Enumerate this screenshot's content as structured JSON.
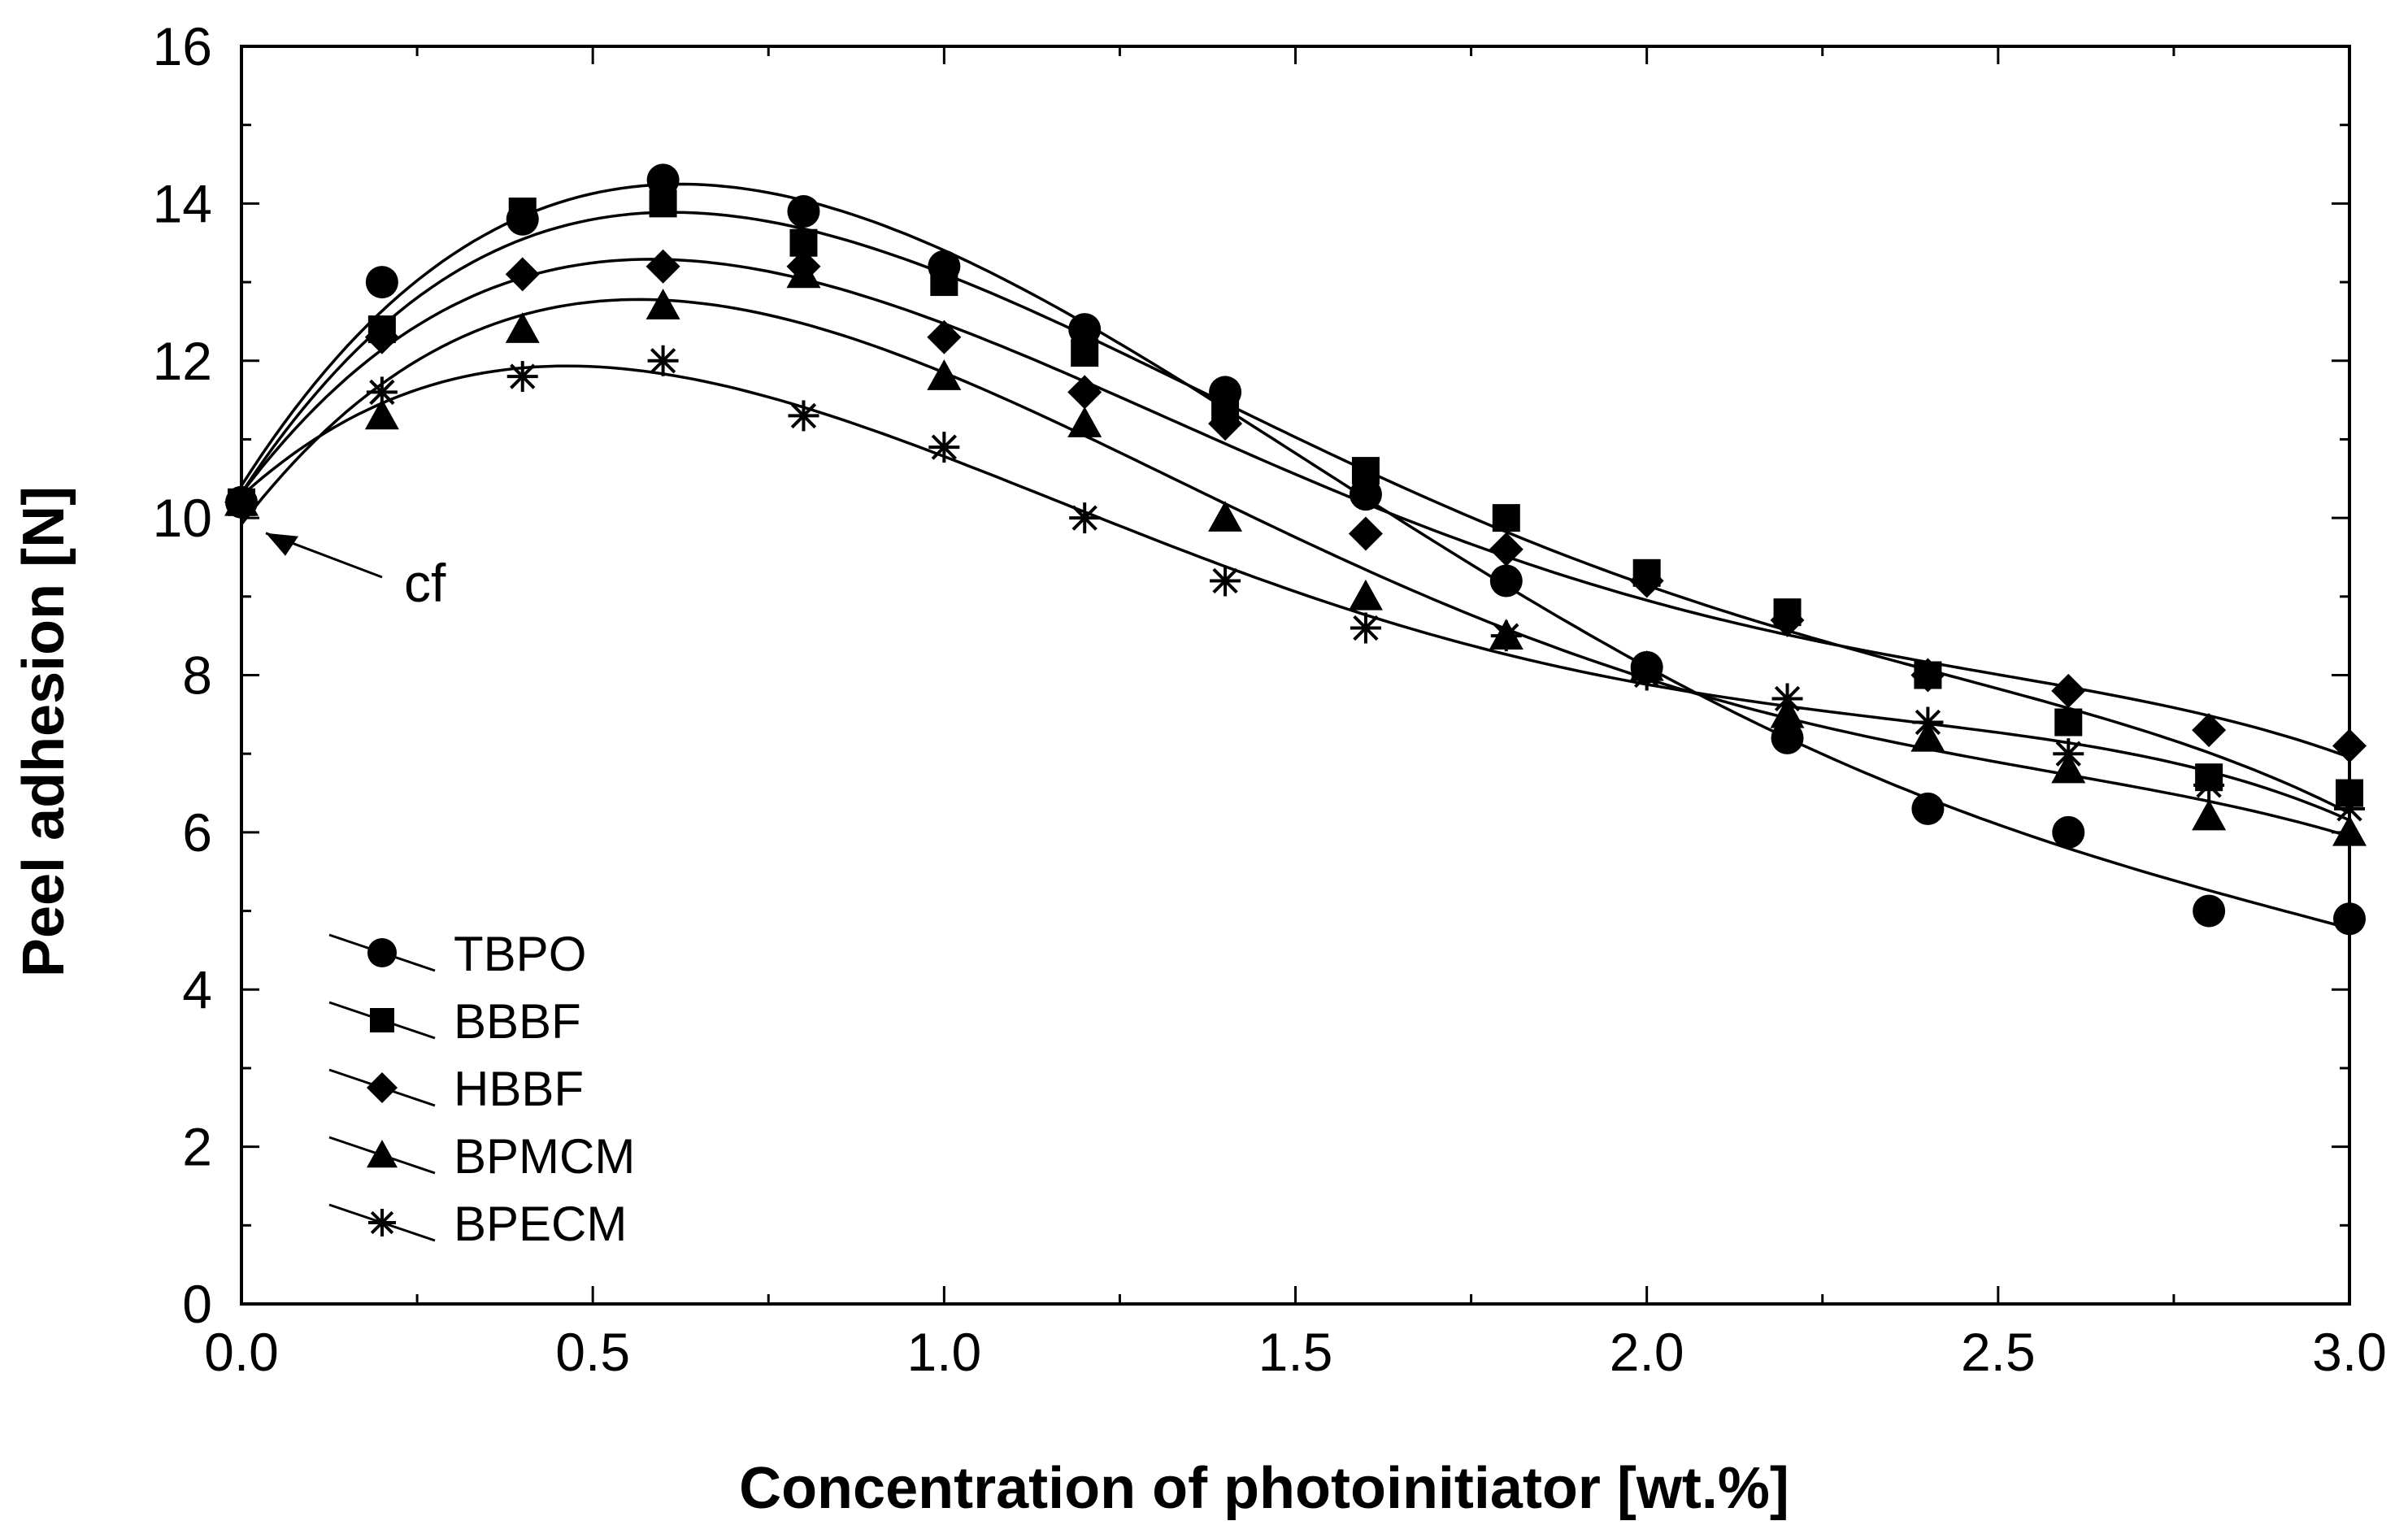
{
  "chart_data": {
    "type": "scatter",
    "title": "",
    "xlabel": "Concentration of photoinitiator [wt.%]",
    "ylabel": "Peel adhesion [N]",
    "xlim": [
      0,
      3
    ],
    "ylim": [
      0,
      16
    ],
    "xticks": [
      "0.0",
      "0.5",
      "1.0",
      "1.5",
      "2.0",
      "2.5",
      "3.0"
    ],
    "yticks": [
      "0",
      "2",
      "4",
      "6",
      "8",
      "10",
      "12",
      "14",
      "16"
    ],
    "legend_position": "bottom-left",
    "annotation": {
      "text": "cf",
      "x": 0,
      "y": 10.2
    },
    "series": [
      {
        "name": "TBPO",
        "marker": "circle",
        "x": [
          0,
          0.2,
          0.4,
          0.6,
          0.8,
          1.0,
          1.2,
          1.4,
          1.6,
          1.8,
          2.0,
          2.2,
          2.4,
          2.6,
          2.8,
          3.0
        ],
        "y": [
          10.2,
          13.0,
          13.8,
          14.3,
          13.9,
          13.2,
          12.4,
          11.6,
          10.3,
          9.2,
          8.1,
          7.2,
          6.3,
          6.0,
          5.0,
          4.9
        ]
      },
      {
        "name": "BBBF",
        "marker": "square",
        "x": [
          0,
          0.2,
          0.4,
          0.6,
          0.8,
          1.0,
          1.2,
          1.4,
          1.6,
          1.8,
          2.0,
          2.2,
          2.4,
          2.6,
          2.8,
          3.0
        ],
        "y": [
          10.2,
          12.4,
          13.9,
          14.0,
          13.5,
          13.0,
          12.1,
          11.4,
          10.6,
          10.0,
          9.3,
          8.8,
          8.0,
          7.4,
          6.7,
          6.5
        ]
      },
      {
        "name": "HBBF",
        "marker": "diamond",
        "x": [
          0,
          0.2,
          0.4,
          0.6,
          0.8,
          1.0,
          1.2,
          1.4,
          1.6,
          1.8,
          2.0,
          2.2,
          2.4,
          2.6,
          2.8,
          3.0
        ],
        "y": [
          10.2,
          12.3,
          13.1,
          13.2,
          13.2,
          12.3,
          11.6,
          11.2,
          9.8,
          9.6,
          9.2,
          8.7,
          8.0,
          7.8,
          7.3,
          7.1
        ]
      },
      {
        "name": "BPMCM",
        "marker": "triangle",
        "x": [
          0,
          0.2,
          0.4,
          0.6,
          0.8,
          1.0,
          1.2,
          1.4,
          1.6,
          1.8,
          2.0,
          2.2,
          2.4,
          2.6,
          2.8,
          3.0
        ],
        "y": [
          10.2,
          11.3,
          12.4,
          12.7,
          13.1,
          11.8,
          11.2,
          10.0,
          9.0,
          8.5,
          8.1,
          7.5,
          7.2,
          6.8,
          6.2,
          6.0
        ]
      },
      {
        "name": "BPECM",
        "marker": "asterisk",
        "x": [
          0,
          0.2,
          0.4,
          0.6,
          0.8,
          1.0,
          1.2,
          1.4,
          1.6,
          1.8,
          2.0,
          2.2,
          2.4,
          2.6,
          2.8,
          3.0
        ],
        "y": [
          10.2,
          11.6,
          11.8,
          12.0,
          11.3,
          10.9,
          10.0,
          9.2,
          8.6,
          8.5,
          8.0,
          7.7,
          7.4,
          7.0,
          6.6,
          6.3
        ]
      }
    ]
  }
}
